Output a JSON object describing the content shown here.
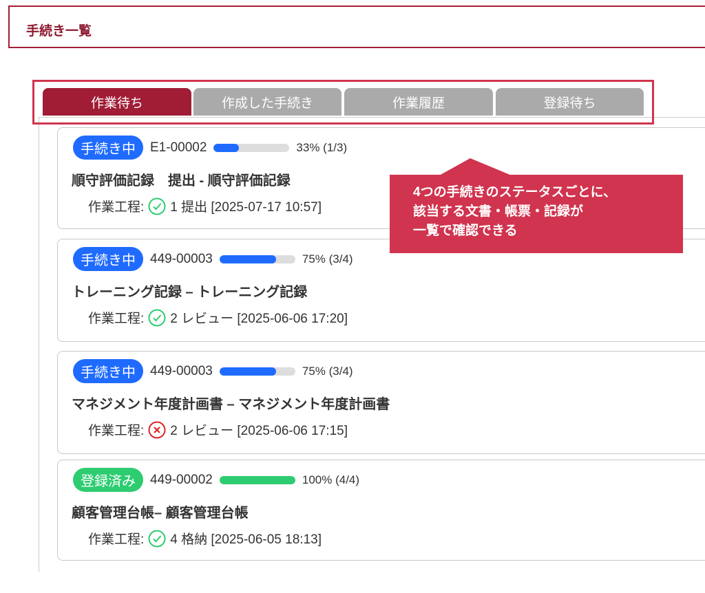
{
  "header": {
    "title": "手続き一覧"
  },
  "tabs": [
    {
      "label": "作業待ち",
      "active": true
    },
    {
      "label": "作成した手続き"
    },
    {
      "label": "作業履歴"
    },
    {
      "label": "登録待ち"
    }
  ],
  "colors": {
    "brand": "#a11c35",
    "highlight": "#d0344e",
    "in_progress": "#1f6bff",
    "registered": "#2ecc71",
    "ok": "#2ecc71",
    "ng": "#e02424"
  },
  "cards": [
    {
      "status": "手続き中",
      "id": "E1-00002",
      "progress": 33,
      "progress_text": "33% (1/3)",
      "title": "順守評価記録　提出 - 順守評価記録",
      "step_label": "作業工程:",
      "step_icon": "check-circle-icon",
      "step": "1 提出 [2025-07-17 10:57]"
    },
    {
      "status": "手続き中",
      "id": "449-00003",
      "progress": 75,
      "progress_text": "75% (3/4)",
      "title": "トレーニング記録 – トレーニング記録",
      "step_label": "作業工程:",
      "step_icon": "check-circle-icon",
      "step": "2 レビュー [2025-06-06 17:20]"
    },
    {
      "status": "手続き中",
      "id": "449-00003",
      "progress": 75,
      "progress_text": "75% (3/4)",
      "title": "マネジメント年度計画書 – マネジメント年度計画書",
      "step_label": "作業工程:",
      "step_icon": "x-circle-icon",
      "step": "2 レビュー [2025-06-06 17:15]"
    },
    {
      "status": "登録済み",
      "id": "449-00002",
      "progress": 100,
      "progress_text": "100% (4/4)",
      "title": "顧客管理台帳– 顧客管理台帳",
      "step_label": "作業工程:",
      "step_icon": "check-circle-icon",
      "step": "4 格納 [2025-06-05 18:13]"
    }
  ],
  "callout": {
    "lines": [
      "4つの手続きのステータスごとに、",
      "該当する文書・帳票・記録が",
      "一覧で確認できる"
    ]
  }
}
